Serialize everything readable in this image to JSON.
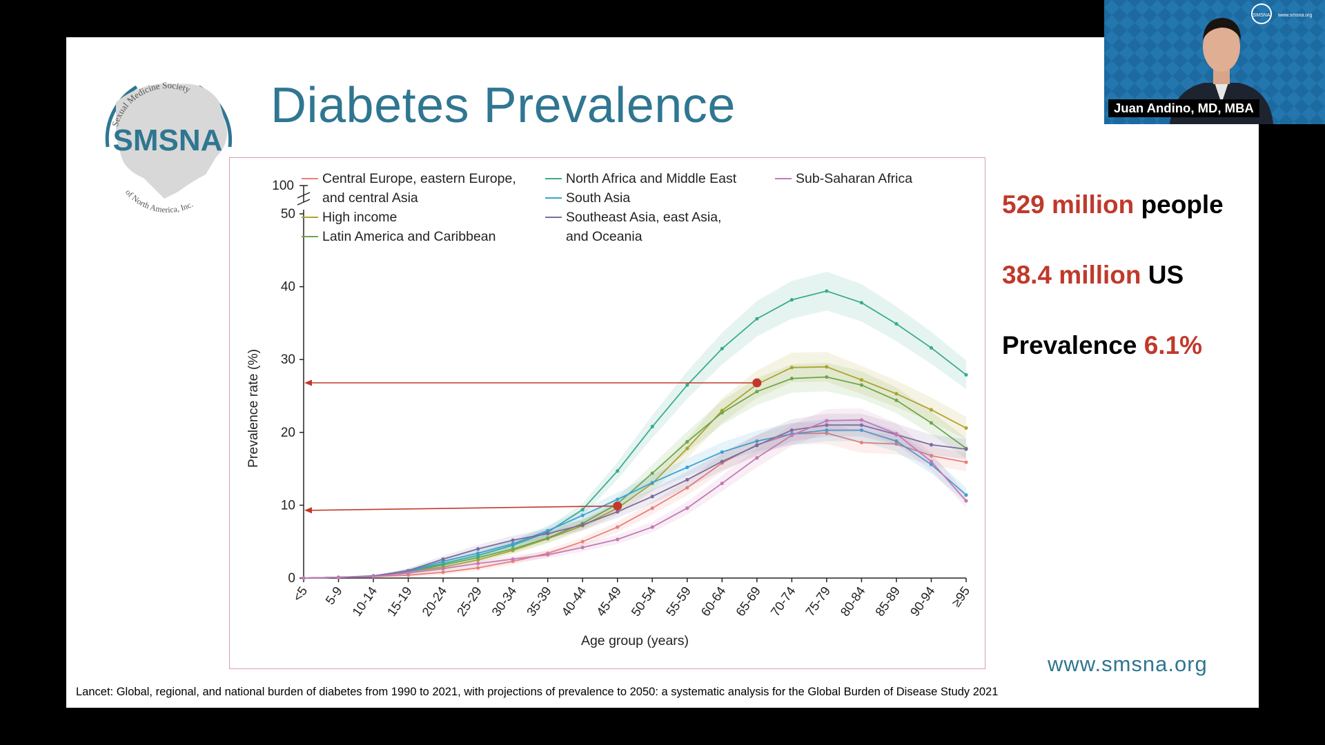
{
  "slide": {
    "title": "Diabetes Prevalence",
    "logo": {
      "top_text": "Sexual Medicine Society",
      "main_text": "SMSNA",
      "bottom_text": "of North America, Inc."
    },
    "stats": [
      {
        "highlight": "529 million",
        "rest": " people",
        "order": "hl-first"
      },
      {
        "highlight": "38.4 million",
        "rest": " US",
        "order": "hl-first"
      },
      {
        "rest": "Prevalence ",
        "highlight": "6.1%",
        "order": "hl-last"
      }
    ],
    "website": "www.smsna.org",
    "citation": "Lancet: Global, regional, and national burden of diabetes from 1990 to 2021, with projections of prevalence to 2050: a systematic analysis for the Global Burden of Disease Study 2021"
  },
  "presenter": {
    "name": "Juan Andino, MD, MBA",
    "bg_logo_text": "SMSNA",
    "bg_url_text": "www.smsna.org"
  },
  "colors": {
    "accent": "#2f7691",
    "highlight": "#c0392b",
    "marker": "#c0392b"
  },
  "chart_data": {
    "type": "line",
    "xlabel": "Age group (years)",
    "ylabel": "Prevalence rate (%)",
    "ylim": [
      0,
      50
    ],
    "yticks": [
      0,
      10,
      20,
      30,
      40,
      50
    ],
    "break_tick": "100",
    "categories": [
      "<5",
      "5-9",
      "10-14",
      "15-19",
      "20-24",
      "25-29",
      "30-34",
      "35-39",
      "40-44",
      "45-49",
      "50-54",
      "55-59",
      "60-64",
      "65-69",
      "70-74",
      "75-79",
      "80-84",
      "85-89",
      "90-94",
      "≥95"
    ],
    "series": [
      {
        "name": "Central Europe, eastern Europe, and central Asia",
        "legend_lines": [
          "Central Europe, eastern Europe,",
          "and central Asia"
        ],
        "color": "#e8807a",
        "values": [
          0,
          0.1,
          0.2,
          0.4,
          0.8,
          1.4,
          2.3,
          3.4,
          5.0,
          7.0,
          9.6,
          12.4,
          15.8,
          18.3,
          19.8,
          19.9,
          18.6,
          18.4,
          16.8,
          15.9
        ]
      },
      {
        "name": "High income",
        "legend_lines": [
          "High income"
        ],
        "color": "#b5a22a",
        "values": [
          0,
          0.1,
          0.2,
          0.9,
          1.5,
          2.5,
          3.8,
          5.4,
          7.2,
          9.6,
          13.0,
          17.8,
          23.0,
          26.6,
          28.9,
          29.0,
          27.2,
          25.3,
          23.1,
          20.6
        ]
      },
      {
        "name": "Latin America and Caribbean",
        "legend_lines": [
          "Latin America and Caribbean"
        ],
        "color": "#6aa84f",
        "values": [
          0,
          0.1,
          0.2,
          0.9,
          1.8,
          2.8,
          4.0,
          5.5,
          7.5,
          10.2,
          14.4,
          18.7,
          22.7,
          25.6,
          27.4,
          27.6,
          26.5,
          24.4,
          21.3,
          17.8
        ]
      },
      {
        "name": "North Africa and Middle East",
        "legend_lines": [
          "North Africa and Middle East"
        ],
        "color": "#3aab8f",
        "values": [
          0,
          0.1,
          0.2,
          0.9,
          2.0,
          3.1,
          4.5,
          6.3,
          9.4,
          14.7,
          20.8,
          26.5,
          31.5,
          35.6,
          38.2,
          39.4,
          37.8,
          34.9,
          31.6,
          27.9
        ]
      },
      {
        "name": "South Asia",
        "legend_lines": [
          "South Asia"
        ],
        "color": "#3aa3d3",
        "values": [
          0,
          0.1,
          0.2,
          0.9,
          2.3,
          3.4,
          4.7,
          6.5,
          8.6,
          10.8,
          13.1,
          15.2,
          17.3,
          18.8,
          19.8,
          20.3,
          20.3,
          18.8,
          15.6,
          11.4
        ]
      },
      {
        "name": "Southeast Asia, east Asia, and Oceania",
        "legend_lines": [
          "Southeast Asia, east Asia,",
          "and Oceania"
        ],
        "color": "#7a6a9e",
        "values": [
          0,
          0.1,
          0.3,
          1.0,
          2.6,
          4.0,
          5.2,
          6.1,
          7.3,
          9.1,
          11.2,
          13.5,
          16.0,
          18.2,
          20.3,
          21.0,
          21.0,
          19.7,
          18.3,
          17.7
        ]
      },
      {
        "name": "Sub-Saharan Africa",
        "legend_lines": [
          "Sub-Saharan Africa"
        ],
        "color": "#c678b4",
        "values": [
          0,
          0.1,
          0.2,
          0.7,
          1.3,
          2.0,
          2.6,
          3.2,
          4.2,
          5.3,
          7.0,
          9.6,
          13.0,
          16.5,
          19.6,
          21.6,
          21.7,
          19.8,
          16.0,
          10.6
        ]
      }
    ],
    "annotations": [
      {
        "category": "65-69",
        "value": 26.8,
        "arrow_to_axis": 26.8
      },
      {
        "category": "45-49",
        "value": 9.9,
        "arrow_to_axis": 9.3
      }
    ]
  }
}
